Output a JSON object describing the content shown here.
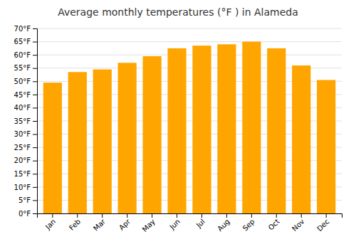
{
  "chart_data": {
    "type": "bar",
    "title": "Average monthly temperatures (°F ) in Alameda",
    "categories": [
      "Jan",
      "Feb",
      "Mar",
      "Apr",
      "May",
      "Jun",
      "Jul",
      "Aug",
      "Sep",
      "Oct",
      "Nov",
      "Dec"
    ],
    "values": [
      49.5,
      53.5,
      54.5,
      57.0,
      59.5,
      62.5,
      63.5,
      64.0,
      65.0,
      62.5,
      56.0,
      50.5
    ],
    "color": "#FFA500",
    "ylim": [
      0,
      70
    ],
    "yticks": [
      {
        "value": 0,
        "label": "0°F"
      },
      {
        "value": 5,
        "label": "5°F"
      },
      {
        "value": 10,
        "label": "10°F"
      },
      {
        "value": 15,
        "label": "15°F"
      },
      {
        "value": 20,
        "label": "20°F"
      },
      {
        "value": 25,
        "label": "25°F"
      },
      {
        "value": 30,
        "label": "30°F"
      },
      {
        "value": 35,
        "label": "35°F"
      },
      {
        "value": 40,
        "label": "40°F"
      },
      {
        "value": 45,
        "label": "45°F"
      },
      {
        "value": 50,
        "label": "50°F"
      },
      {
        "value": 55,
        "label": "55°F"
      },
      {
        "value": 60,
        "label": "60°F"
      },
      {
        "value": 65,
        "label": "65°F"
      },
      {
        "value": 70,
        "label": "70°F"
      }
    ],
    "grid": true
  }
}
